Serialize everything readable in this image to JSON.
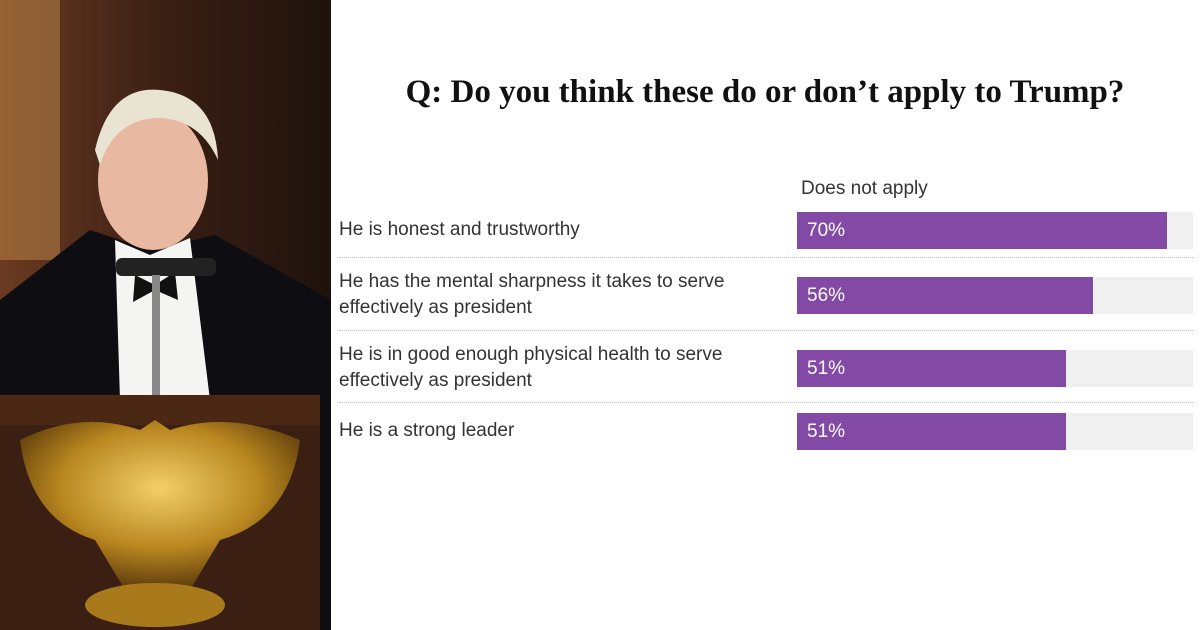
{
  "chart_data": {
    "type": "bar",
    "orientation": "horizontal",
    "title": "Q: Do you think these do or don’t apply to Trump?",
    "categories": [
      "He is honest and trustworthy",
      "He has the mental sharpness it takes to serve effectively as president",
      "He is in good enough physical health to serve effectively as president",
      "He is a strong leader"
    ],
    "series": [
      {
        "name": "Does not apply",
        "color": "#8249a5",
        "values": [
          70,
          56,
          51,
          51
        ],
        "value_labels": [
          "70%",
          "56%",
          "51%",
          "51%"
        ]
      }
    ],
    "xlim": [
      0,
      75
    ]
  }
}
